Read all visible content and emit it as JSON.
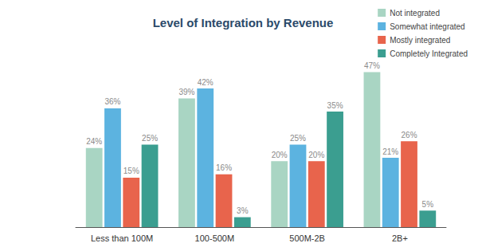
{
  "chart_data": {
    "type": "bar",
    "title": "Level of Integration by Revenue",
    "categories": [
      "Less than 100M",
      "100-500M",
      "500M-2B",
      "2B+"
    ],
    "series": [
      {
        "name": "Not integrated",
        "color": "#a9d5c3",
        "values": [
          24,
          39,
          20,
          47
        ],
        "value_labels": [
          "24%",
          "39%",
          "20%",
          "47%"
        ]
      },
      {
        "name": "Somewhat integrated",
        "color": "#5cb3e0",
        "values": [
          36,
          42,
          25,
          21
        ],
        "value_labels": [
          "36%",
          "42%",
          "25%",
          "21%"
        ]
      },
      {
        "name": "Mostly integrated",
        "color": "#e8644c",
        "values": [
          15,
          16,
          20,
          26
        ],
        "value_labels": [
          "15%",
          "16%",
          "20%",
          "26%"
        ]
      },
      {
        "name": "Completely Integrated",
        "color": "#3b9e90",
        "values": [
          25,
          3,
          35,
          5
        ],
        "value_labels": [
          "25%",
          "3%",
          "35%",
          "5%"
        ]
      }
    ],
    "data_labels": true,
    "tick_labels": "x",
    "grid": false,
    "legend": "top-right"
  }
}
